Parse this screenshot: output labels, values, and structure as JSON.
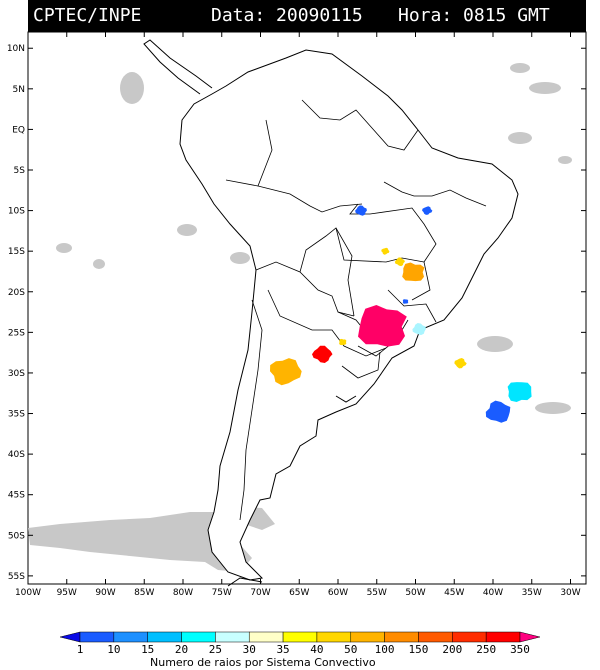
{
  "header": {
    "source": "CPTEC/INPE",
    "date_label": "Data: 20090115",
    "time_label": "Hora: 0815 GMT"
  },
  "map": {
    "lat_ticks": [
      "10N",
      "5N",
      "EQ",
      "5S",
      "10S",
      "15S",
      "20S",
      "25S",
      "30S",
      "35S",
      "40S",
      "45S",
      "50S",
      "55S"
    ],
    "lon_ticks": [
      "100W",
      "95W",
      "90W",
      "85W",
      "80W",
      "75W",
      "70W",
      "65W",
      "60W",
      "55W",
      "50W",
      "45W",
      "40W",
      "35W",
      "30W"
    ],
    "lon_range": [
      -100,
      -28
    ],
    "lat_range": [
      -56,
      12
    ]
  },
  "legend": {
    "caption": "Numero de raios por Sistema Convectivo",
    "labels": [
      "1",
      "10",
      "15",
      "20",
      "25",
      "30",
      "35",
      "40",
      "50",
      "100",
      "150",
      "200",
      "250",
      "350"
    ],
    "colors": [
      "#0a0ae6",
      "#1a5cff",
      "#1e90ff",
      "#00bfff",
      "#00ffff",
      "#c8ffff",
      "#ffffc8",
      "#ffff00",
      "#ffd700",
      "#ffb400",
      "#ff8c00",
      "#ff5a00",
      "#ff2d00",
      "#ff0000",
      "#ff0080"
    ]
  },
  "systems": [
    {
      "lon": -54.3,
      "lat": -24.3,
      "color": "#ff0066"
    },
    {
      "lon": -62.0,
      "lat": -27.7,
      "color": "#ff0000"
    },
    {
      "lon": -66.8,
      "lat": -29.8,
      "color": "#ffb400"
    },
    {
      "lon": -50.3,
      "lat": -17.6,
      "color": "#ffa500"
    },
    {
      "lon": -52.0,
      "lat": -16.3,
      "color": "#ffd700"
    },
    {
      "lon": -53.9,
      "lat": -15.0,
      "color": "#ffd700"
    },
    {
      "lon": -59.4,
      "lat": -26.2,
      "color": "#ffd700"
    },
    {
      "lon": -57.0,
      "lat": -10.0,
      "color": "#1a5cff"
    },
    {
      "lon": -48.5,
      "lat": -10.0,
      "color": "#1a5cff"
    },
    {
      "lon": -51.3,
      "lat": -21.2,
      "color": "#1a5cff"
    },
    {
      "lon": -49.5,
      "lat": -24.6,
      "color": "#aaf5ff"
    },
    {
      "lon": -44.2,
      "lat": -28.8,
      "color": "#ffd700"
    },
    {
      "lon": -36.6,
      "lat": -32.3,
      "color": "#00e5ff"
    },
    {
      "lon": -39.3,
      "lat": -34.8,
      "color": "#1a5cff"
    }
  ]
}
